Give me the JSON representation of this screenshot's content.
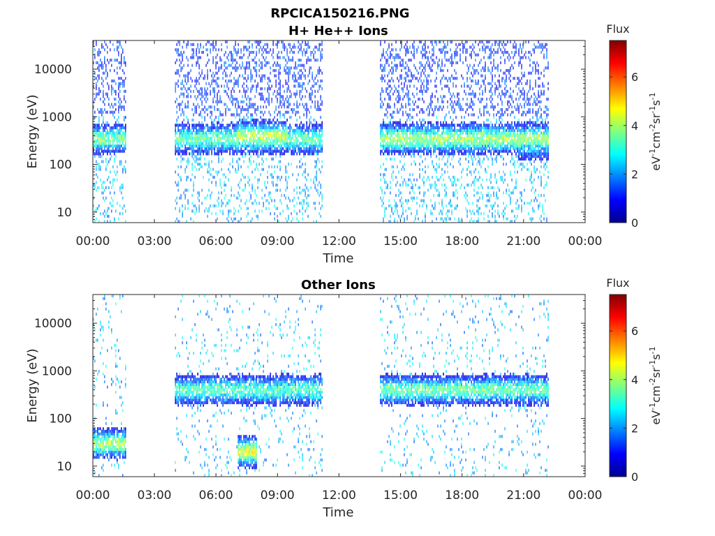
{
  "figure_title": "RPCICA150216.PNG",
  "colorscale": [
    "#00008f",
    "#0000ff",
    "#0080ff",
    "#00ffff",
    "#80ff80",
    "#ffff00",
    "#ff8000",
    "#ff0000",
    "#800000"
  ],
  "chart_data": [
    {
      "type": "heatmap",
      "title": "H+ He++ Ions",
      "xlabel": "Time",
      "ylabel": "Energy (eV)",
      "xlim_hours": [
        0,
        24
      ],
      "x_ticks": [
        "00:00",
        "03:00",
        "06:00",
        "09:00",
        "12:00",
        "15:00",
        "18:00",
        "21:00",
        "00:00"
      ],
      "ylim": [
        6,
        40000
      ],
      "y_scale": "log",
      "y_ticks": [
        {
          "value": 10,
          "label": "10"
        },
        {
          "value": 100,
          "label": "100"
        },
        {
          "value": 1000,
          "label": "1000"
        },
        {
          "value": 10000,
          "label": "10000"
        }
      ],
      "data_intervals_hours": [
        [
          0.0,
          1.6
        ],
        [
          4.0,
          11.2
        ],
        [
          14.0,
          22.2
        ]
      ],
      "features": [
        {
          "t": [
            0.0,
            1.6
          ],
          "e_center": 350,
          "flux": 3.6
        },
        {
          "t": [
            4.0,
            11.2
          ],
          "e_center": 350,
          "flux": 3.5
        },
        {
          "t": [
            7.0,
            9.5
          ],
          "e_center": 400,
          "flux": 4.2
        },
        {
          "t": [
            14.0,
            22.2
          ],
          "e_center": 350,
          "flux": 4.0
        },
        {
          "t": [
            20.7,
            22.2
          ],
          "e_center": 250,
          "flux": 2.5
        }
      ],
      "colorbar": {
        "label": "Flux",
        "units": "eV-1cm-2sr-1s-1",
        "unit_parts": [
          {
            "t": "eV"
          },
          {
            "t": "-1",
            "sup": true
          },
          {
            "t": "cm"
          },
          {
            "t": "-2",
            "sup": true
          },
          {
            "t": "sr"
          },
          {
            "t": "-1",
            "sup": true
          },
          {
            "t": "s"
          },
          {
            "t": "-1",
            "sup": true
          }
        ],
        "range": [
          0,
          7.5
        ],
        "ticks": [
          0,
          2,
          4,
          6
        ]
      }
    },
    {
      "type": "heatmap",
      "title": "Other Ions",
      "xlabel": "Time",
      "ylabel": "Energy (eV)",
      "xlim_hours": [
        0,
        24
      ],
      "x_ticks": [
        "00:00",
        "03:00",
        "06:00",
        "09:00",
        "12:00",
        "15:00",
        "18:00",
        "21:00",
        "00:00"
      ],
      "ylim": [
        6,
        40000
      ],
      "y_scale": "log",
      "y_ticks": [
        {
          "value": 10,
          "label": "10"
        },
        {
          "value": 100,
          "label": "100"
        },
        {
          "value": 1000,
          "label": "1000"
        },
        {
          "value": 10000,
          "label": "10000"
        }
      ],
      "data_intervals_hours": [
        [
          0.0,
          1.6
        ],
        [
          4.0,
          11.2
        ],
        [
          14.0,
          22.2
        ]
      ],
      "features": [
        {
          "t": [
            0.0,
            1.6
          ],
          "e_center": 30,
          "flux": 4.0
        },
        {
          "t": [
            4.0,
            11.2
          ],
          "e_center": 400,
          "flux": 3.3
        },
        {
          "t": [
            7.0,
            8.0
          ],
          "e_center": 20,
          "flux": 4.5
        },
        {
          "t": [
            14.0,
            22.2
          ],
          "e_center": 400,
          "flux": 3.5
        }
      ],
      "colorbar": {
        "label": "Flux",
        "units": "eV-1cm-2sr-1s-1",
        "unit_parts": [
          {
            "t": "eV"
          },
          {
            "t": "-1",
            "sup": true
          },
          {
            "t": "cm"
          },
          {
            "t": "-2",
            "sup": true
          },
          {
            "t": "sr"
          },
          {
            "t": "-1",
            "sup": true
          },
          {
            "t": "s"
          },
          {
            "t": "-1",
            "sup": true
          }
        ],
        "range": [
          0,
          7.5
        ],
        "ticks": [
          0,
          2,
          4,
          6
        ]
      }
    }
  ]
}
